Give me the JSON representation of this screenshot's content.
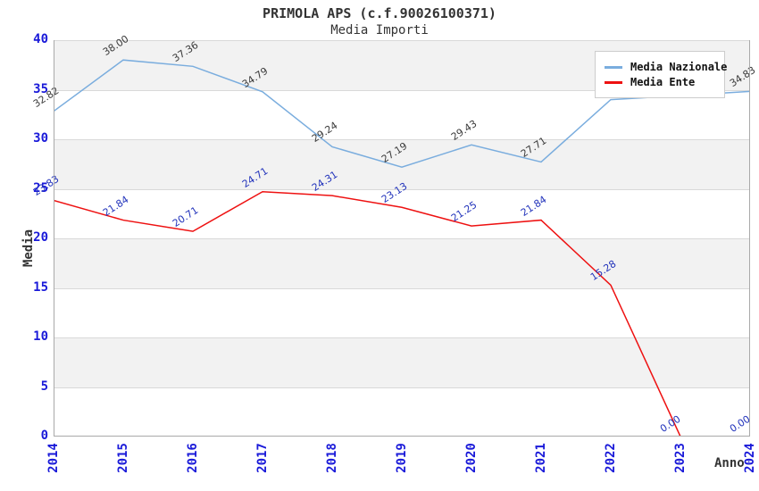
{
  "title": "PRIMOLA APS (c.f.90026100371)",
  "subtitle": "Media Importi",
  "legend": {
    "items": [
      {
        "label": "Media Nazionale",
        "color": "#7aadde"
      },
      {
        "label": "Media Ente",
        "color": "#ee1111"
      }
    ]
  },
  "axes": {
    "y_label": "Media",
    "x_label": "Anno",
    "y_ticks": [
      "0",
      "5",
      "10",
      "15",
      "20",
      "25",
      "30",
      "35",
      "40"
    ],
    "x_ticks": [
      "2014",
      "2015",
      "2016",
      "2017",
      "2018",
      "2019",
      "2020",
      "2021",
      "2022",
      "2023",
      "2024"
    ]
  },
  "chart_data": {
    "type": "line",
    "title": "PRIMOLA APS (c.f.90026100371)",
    "subtitle": "Media Importi",
    "xlabel": "Anno",
    "ylabel": "Media",
    "x": [
      "2014",
      "2015",
      "2016",
      "2017",
      "2018",
      "2019",
      "2020",
      "2021",
      "2022",
      "2023",
      "2024"
    ],
    "ylim": [
      0,
      40
    ],
    "grid": "alternating-horizontal-bands-every-5",
    "legend_position": "top-right",
    "series": [
      {
        "name": "Media Nazionale",
        "color": "#7aadde",
        "label_color": "#3a3a3a",
        "values": [
          32.82,
          38.0,
          37.36,
          34.79,
          29.24,
          27.19,
          29.43,
          27.71,
          34.0,
          34.4,
          34.83
        ],
        "labels": [
          "32.82",
          "38.00",
          "37.36",
          "34.79",
          "29.24",
          "27.19",
          "29.43",
          "27.71",
          "",
          "",
          "34.83"
        ],
        "note": "2022 and 2023 point labels are occluded by the legend box; their values are estimated from the gridlines"
      },
      {
        "name": "Media Ente",
        "color": "#ee1111",
        "label_color": "#2233bb",
        "values": [
          23.83,
          21.84,
          20.71,
          24.71,
          24.31,
          23.13,
          21.25,
          21.84,
          15.28,
          0.0,
          0.0
        ],
        "labels": [
          "23.83",
          "21.84",
          "20.71",
          "24.71",
          "24.31",
          "23.13",
          "21.25",
          "21.84",
          "15.28",
          "0.00",
          "0.00"
        ]
      }
    ]
  },
  "colors": {
    "tick_label": "#1a1ad9",
    "axis_title": "#333333",
    "band": "#f2f2f2",
    "gridline": "#d9d9d9",
    "axis_line": "#a9a9a9",
    "title": "#333333"
  }
}
